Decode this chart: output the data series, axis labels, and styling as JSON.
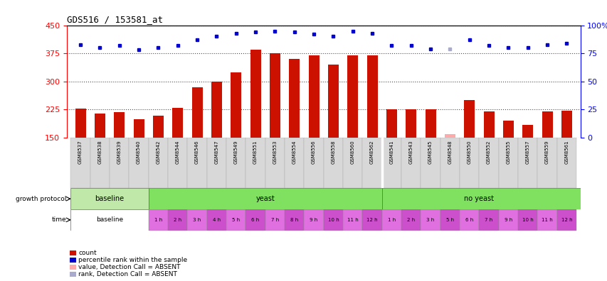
{
  "title": "GDS516 / 153581_at",
  "samples": [
    "GSM8537",
    "GSM8538",
    "GSM8539",
    "GSM8540",
    "GSM8542",
    "GSM8544",
    "GSM8546",
    "GSM8547",
    "GSM8549",
    "GSM8551",
    "GSM8553",
    "GSM8554",
    "GSM8556",
    "GSM8558",
    "GSM8560",
    "GSM8562",
    "GSM8541",
    "GSM8543",
    "GSM8545",
    "GSM8548",
    "GSM8550",
    "GSM8552",
    "GSM8555",
    "GSM8557",
    "GSM8559",
    "GSM8561"
  ],
  "counts": [
    228,
    215,
    218,
    200,
    208,
    230,
    285,
    300,
    325,
    385,
    375,
    360,
    370,
    345,
    370,
    370,
    225,
    225,
    225,
    160,
    250,
    220,
    195,
    185,
    220,
    222
  ],
  "absent_count": [
    false,
    false,
    false,
    false,
    false,
    false,
    false,
    false,
    false,
    false,
    false,
    false,
    false,
    false,
    false,
    false,
    false,
    false,
    false,
    true,
    false,
    false,
    false,
    false,
    false,
    false
  ],
  "ranks_pct": [
    83,
    80,
    82,
    78,
    80,
    82,
    87,
    90,
    93,
    94,
    95,
    94,
    92,
    90,
    95,
    93,
    82,
    82,
    79,
    79,
    87,
    82,
    80,
    80,
    83,
    84
  ],
  "absent_rank": [
    false,
    false,
    false,
    false,
    false,
    false,
    false,
    false,
    false,
    false,
    false,
    false,
    false,
    false,
    false,
    false,
    false,
    false,
    false,
    true,
    false,
    false,
    false,
    false,
    false,
    false
  ],
  "ylim_left": [
    150,
    450
  ],
  "ylim_right": [
    0,
    100
  ],
  "yticks_left": [
    150,
    225,
    300,
    375,
    450
  ],
  "yticks_right": [
    0,
    25,
    50,
    75,
    100
  ],
  "bar_color": "#cc1100",
  "absent_bar_color": "#ffaaaa",
  "rank_color": "#0000cc",
  "absent_rank_color": "#aaaacc",
  "bg_color": "#ffffff",
  "plot_bg": "#ffffff",
  "baseline_color": "#c0e8a8",
  "yeast_color": "#80e060",
  "noyeast_color": "#80e060",
  "time_pink_light": "#e070e0",
  "time_pink_dark": "#cc50cc",
  "time_white": "#ffffff",
  "yeast_times": [
    "1 h",
    "2 h",
    "3 h",
    "4 h",
    "5 h",
    "6 h",
    "7 h",
    "8 h",
    "9 h",
    "10 h",
    "11 h",
    "12 h"
  ],
  "noyeast_times": [
    "1 h",
    "2 h",
    "3 h",
    "5 h",
    "6 h",
    "7 h",
    "9 h",
    "10 h",
    "11 h",
    "12 h"
  ]
}
